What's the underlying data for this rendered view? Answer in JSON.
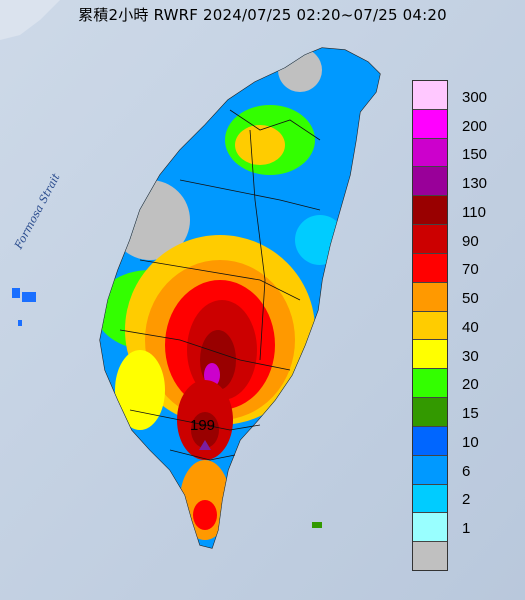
{
  "title": "累積2小時 RWRF 2024/07/25 02:20~07/25 04:20",
  "strait_label": "Formosa Strait",
  "max_value_label": "199",
  "legend": {
    "items": [
      {
        "label": "300",
        "color": "#ffc8ff"
      },
      {
        "label": "200",
        "color": "#ff00ff"
      },
      {
        "label": "150",
        "color": "#cc00cc"
      },
      {
        "label": "130",
        "color": "#990099"
      },
      {
        "label": "110",
        "color": "#990000"
      },
      {
        "label": "90",
        "color": "#cc0000"
      },
      {
        "label": "70",
        "color": "#ff0000"
      },
      {
        "label": "50",
        "color": "#ff9900"
      },
      {
        "label": "40",
        "color": "#ffcc00"
      },
      {
        "label": "30",
        "color": "#ffff00"
      },
      {
        "label": "20",
        "color": "#33ff00"
      },
      {
        "label": "15",
        "color": "#339900"
      },
      {
        "label": "10",
        "color": "#0066ff"
      },
      {
        "label": "6",
        "color": "#0099ff"
      },
      {
        "label": "2",
        "color": "#00ccff"
      },
      {
        "label": "1",
        "color": "#99ffff"
      },
      {
        "label": "",
        "color": "#c0c0c0"
      }
    ]
  }
}
